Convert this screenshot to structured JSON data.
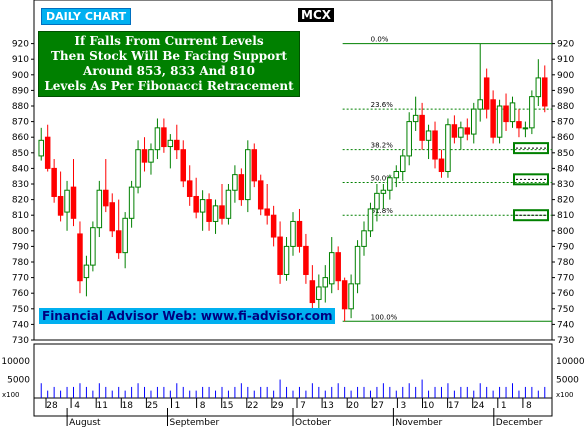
{
  "header": {
    "chart_label": "DAILY CHART",
    "exchange": "MCX"
  },
  "commentary": [
    "If Falls From Current Levels",
    "Then Stock Will Be Facing Support",
    "Around 853, 833 And 810",
    "Levels As Per Fibonacci Retracement"
  ],
  "footer": {
    "website": "Financial Advisor Web: www.fi-advisor.com"
  },
  "colors": {
    "up_candle": "#008000",
    "down_candle": "#ff0000",
    "fib_line": "#008000",
    "volume_bar": "#0000ff",
    "commentary_bg": "#008000",
    "label_bg": "#00b0f0"
  },
  "chart_data": {
    "type": "candlestick",
    "title": "",
    "price_axis": {
      "range": [
        730,
        930
      ],
      "ticks": [
        730,
        740,
        750,
        760,
        770,
        780,
        790,
        800,
        810,
        820,
        830,
        840,
        850,
        860,
        870,
        880,
        890,
        900,
        910,
        920
      ],
      "side": "both"
    },
    "volume_axis": {
      "range": [
        0,
        13000
      ],
      "ticks": [
        5000,
        10000
      ],
      "scale_label": "x100"
    },
    "x_axis": {
      "day_ticks": [
        "28",
        "4",
        "11",
        "18",
        "25",
        "1",
        "8",
        "15",
        "22",
        "29",
        "7",
        "13",
        "20",
        "27",
        "3",
        "10",
        "17",
        "24",
        "1",
        "8"
      ],
      "months": [
        "August",
        "September",
        "October",
        "November",
        "December"
      ]
    },
    "fibonacci": {
      "swing_high": 920,
      "swing_low": 742,
      "levels": [
        {
          "label": "0.0%",
          "value": 920
        },
        {
          "label": "23.6%",
          "value": 878
        },
        {
          "label": "38.2%",
          "value": 852
        },
        {
          "label": "50.0%",
          "value": 831
        },
        {
          "label": "61.8%",
          "value": 810
        },
        {
          "label": "100.0%",
          "value": 742
        }
      ],
      "highlighted_supports": [
        853,
        833,
        810
      ]
    },
    "candles": [
      {
        "o": 848,
        "h": 866,
        "l": 845,
        "c": 858
      },
      {
        "o": 860,
        "h": 868,
        "l": 838,
        "c": 840
      },
      {
        "o": 840,
        "h": 846,
        "l": 818,
        "c": 822
      },
      {
        "o": 822,
        "h": 838,
        "l": 806,
        "c": 810
      },
      {
        "o": 812,
        "h": 832,
        "l": 800,
        "c": 826
      },
      {
        "o": 828,
        "h": 846,
        "l": 803,
        "c": 808
      },
      {
        "o": 798,
        "h": 806,
        "l": 760,
        "c": 768
      },
      {
        "o": 770,
        "h": 784,
        "l": 758,
        "c": 778
      },
      {
        "o": 778,
        "h": 806,
        "l": 774,
        "c": 802
      },
      {
        "o": 802,
        "h": 832,
        "l": 796,
        "c": 826
      },
      {
        "o": 826,
        "h": 846,
        "l": 812,
        "c": 816
      },
      {
        "o": 818,
        "h": 824,
        "l": 796,
        "c": 800
      },
      {
        "o": 800,
        "h": 820,
        "l": 782,
        "c": 786
      },
      {
        "o": 786,
        "h": 812,
        "l": 776,
        "c": 808
      },
      {
        "o": 808,
        "h": 832,
        "l": 802,
        "c": 828
      },
      {
        "o": 828,
        "h": 858,
        "l": 824,
        "c": 852
      },
      {
        "o": 852,
        "h": 860,
        "l": 838,
        "c": 844
      },
      {
        "o": 844,
        "h": 856,
        "l": 836,
        "c": 852
      },
      {
        "o": 852,
        "h": 872,
        "l": 846,
        "c": 866
      },
      {
        "o": 866,
        "h": 872,
        "l": 850,
        "c": 854
      },
      {
        "o": 854,
        "h": 862,
        "l": 840,
        "c": 858
      },
      {
        "o": 858,
        "h": 868,
        "l": 846,
        "c": 852
      },
      {
        "o": 852,
        "h": 858,
        "l": 828,
        "c": 832
      },
      {
        "o": 832,
        "h": 842,
        "l": 816,
        "c": 822
      },
      {
        "o": 822,
        "h": 834,
        "l": 808,
        "c": 812
      },
      {
        "o": 812,
        "h": 826,
        "l": 800,
        "c": 820
      },
      {
        "o": 820,
        "h": 824,
        "l": 800,
        "c": 806
      },
      {
        "o": 806,
        "h": 820,
        "l": 798,
        "c": 816
      },
      {
        "o": 816,
        "h": 830,
        "l": 804,
        "c": 808
      },
      {
        "o": 808,
        "h": 830,
        "l": 804,
        "c": 826
      },
      {
        "o": 826,
        "h": 842,
        "l": 818,
        "c": 836
      },
      {
        "o": 836,
        "h": 840,
        "l": 816,
        "c": 820
      },
      {
        "o": 820,
        "h": 858,
        "l": 812,
        "c": 852
      },
      {
        "o": 852,
        "h": 856,
        "l": 828,
        "c": 832
      },
      {
        "o": 832,
        "h": 836,
        "l": 810,
        "c": 814
      },
      {
        "o": 814,
        "h": 830,
        "l": 804,
        "c": 810
      },
      {
        "o": 810,
        "h": 816,
        "l": 790,
        "c": 796
      },
      {
        "o": 796,
        "h": 806,
        "l": 766,
        "c": 772
      },
      {
        "o": 772,
        "h": 796,
        "l": 768,
        "c": 790
      },
      {
        "o": 790,
        "h": 812,
        "l": 784,
        "c": 806
      },
      {
        "o": 806,
        "h": 814,
        "l": 786,
        "c": 790
      },
      {
        "o": 790,
        "h": 798,
        "l": 766,
        "c": 772
      },
      {
        "o": 768,
        "h": 778,
        "l": 750,
        "c": 754
      },
      {
        "o": 756,
        "h": 772,
        "l": 748,
        "c": 764
      },
      {
        "o": 764,
        "h": 778,
        "l": 754,
        "c": 770
      },
      {
        "o": 766,
        "h": 796,
        "l": 760,
        "c": 786
      },
      {
        "o": 786,
        "h": 790,
        "l": 762,
        "c": 768
      },
      {
        "o": 768,
        "h": 770,
        "l": 742,
        "c": 750
      },
      {
        "o": 750,
        "h": 772,
        "l": 744,
        "c": 766
      },
      {
        "o": 766,
        "h": 794,
        "l": 760,
        "c": 790
      },
      {
        "o": 790,
        "h": 806,
        "l": 784,
        "c": 800
      },
      {
        "o": 800,
        "h": 818,
        "l": 796,
        "c": 814
      },
      {
        "o": 814,
        "h": 830,
        "l": 806,
        "c": 824
      },
      {
        "o": 824,
        "h": 830,
        "l": 814,
        "c": 826
      },
      {
        "o": 826,
        "h": 836,
        "l": 820,
        "c": 834
      },
      {
        "o": 834,
        "h": 842,
        "l": 828,
        "c": 838
      },
      {
        "o": 838,
        "h": 852,
        "l": 832,
        "c": 848
      },
      {
        "o": 848,
        "h": 876,
        "l": 842,
        "c": 870
      },
      {
        "o": 870,
        "h": 886,
        "l": 864,
        "c": 874
      },
      {
        "o": 874,
        "h": 882,
        "l": 852,
        "c": 858
      },
      {
        "o": 858,
        "h": 868,
        "l": 846,
        "c": 864
      },
      {
        "o": 864,
        "h": 870,
        "l": 840,
        "c": 846
      },
      {
        "o": 846,
        "h": 852,
        "l": 834,
        "c": 838
      },
      {
        "o": 838,
        "h": 872,
        "l": 834,
        "c": 868
      },
      {
        "o": 868,
        "h": 874,
        "l": 856,
        "c": 860
      },
      {
        "o": 860,
        "h": 870,
        "l": 852,
        "c": 866
      },
      {
        "o": 866,
        "h": 872,
        "l": 858,
        "c": 862
      },
      {
        "o": 862,
        "h": 882,
        "l": 856,
        "c": 878
      },
      {
        "o": 878,
        "h": 920,
        "l": 870,
        "c": 884
      },
      {
        "o": 898,
        "h": 904,
        "l": 872,
        "c": 878
      },
      {
        "o": 884,
        "h": 890,
        "l": 856,
        "c": 860
      },
      {
        "o": 860,
        "h": 884,
        "l": 856,
        "c": 880
      },
      {
        "o": 880,
        "h": 888,
        "l": 864,
        "c": 870
      },
      {
        "o": 870,
        "h": 886,
        "l": 866,
        "c": 882
      },
      {
        "o": 870,
        "h": 878,
        "l": 860,
        "c": 866
      },
      {
        "o": 866,
        "h": 870,
        "l": 860,
        "c": 866
      },
      {
        "o": 866,
        "h": 890,
        "l": 862,
        "c": 886
      },
      {
        "o": 886,
        "h": 910,
        "l": 880,
        "c": 898
      },
      {
        "o": 898,
        "h": 906,
        "l": 876,
        "c": 880
      }
    ],
    "volume": [
      4,
      2,
      3,
      2,
      3,
      3,
      4,
      3,
      2,
      4,
      3,
      2,
      3,
      2,
      3,
      4,
      3,
      2,
      3,
      3,
      2,
      4,
      3,
      2,
      2,
      3,
      3,
      2,
      3,
      2,
      3,
      4,
      3,
      2,
      3,
      3,
      2,
      5,
      3,
      2,
      3,
      2,
      4,
      3,
      2,
      3,
      4,
      3,
      2,
      3,
      3,
      2,
      3,
      4,
      3,
      2,
      3,
      4,
      3,
      5,
      2,
      3,
      3,
      4,
      2,
      3,
      3,
      2,
      4,
      3,
      2,
      3,
      3,
      4,
      2,
      3,
      3,
      2,
      3
    ],
    "volume_scale": 1000
  }
}
